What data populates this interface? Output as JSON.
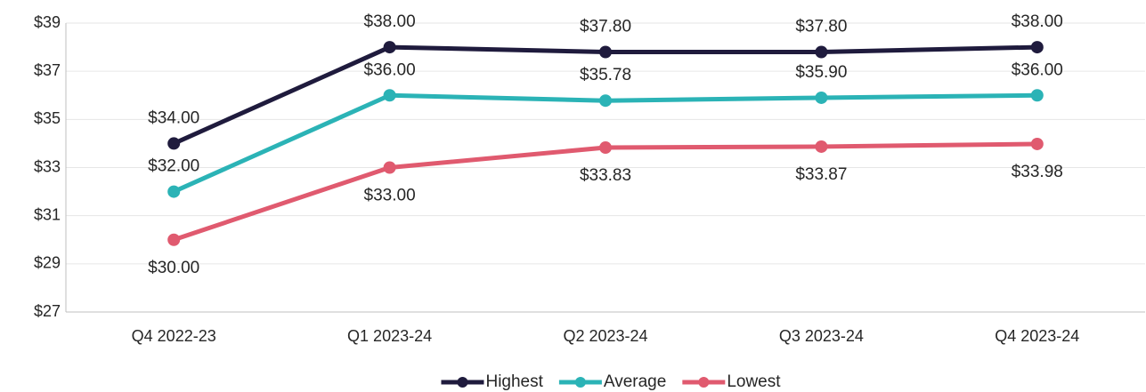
{
  "chart_data": {
    "type": "line",
    "categories": [
      "Q4 2022-23",
      "Q1 2023-24",
      "Q2 2023-24",
      "Q3 2023-24",
      "Q4 2023-24"
    ],
    "series": [
      {
        "name": "Highest",
        "color": "#1f1b3d",
        "values": [
          34,
          38,
          37.8,
          37.8,
          38
        ],
        "value_labels": [
          "$34.00",
          "$38.00",
          "$37.80",
          "$37.80",
          "$38.00"
        ]
      },
      {
        "name": "Average",
        "color": "#2bb3b6",
        "values": [
          32,
          36,
          35.78,
          35.9,
          36
        ],
        "value_labels": [
          "$32.00",
          "$36.00",
          "$35.78",
          "$35.90",
          "$36.00"
        ]
      },
      {
        "name": "Lowest",
        "color": "#e05a6f",
        "values": [
          30,
          33,
          33.83,
          33.87,
          33.98
        ],
        "value_labels": [
          "$30.00",
          "$33.00",
          "$33.83",
          "$33.87",
          "$33.98"
        ]
      }
    ],
    "ylim": [
      27,
      39
    ],
    "yticks": [
      {
        "value": 27,
        "label": "$27"
      },
      {
        "value": 29,
        "label": "$29"
      },
      {
        "value": 31,
        "label": "$31"
      },
      {
        "value": 33,
        "label": "$33"
      },
      {
        "value": 35,
        "label": "$35"
      },
      {
        "value": 37,
        "label": "$37"
      },
      {
        "value": 39,
        "label": "$39"
      }
    ],
    "grid": true,
    "legend": "bottom"
  }
}
